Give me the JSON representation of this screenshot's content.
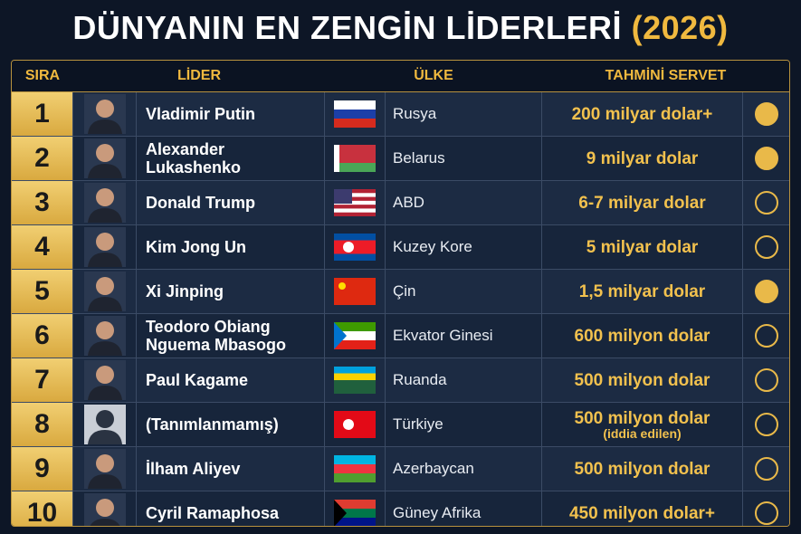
{
  "header": {
    "title": "DÜNYANIN EN ZENGİN LİDERLERİ",
    "year": "(2026)"
  },
  "table": {
    "columns": [
      "SIRA",
      "LİDER",
      "ÜLKE",
      "TAHMİNİ SERVET"
    ],
    "rows": [
      {
        "rank": 1,
        "leader": "Vladimir Putin",
        "country": "Rusya",
        "wealth": "200 milyar dolar+"
      },
      {
        "rank": 2,
        "leader": "Alexander Lukashenko",
        "country": "Belarus",
        "wealth": "9 milyar dolar"
      },
      {
        "rank": 3,
        "leader": "Donald Trump",
        "country": "ABD",
        "wealth": "6-7 milyar dolar"
      },
      {
        "rank": 4,
        "leader": "Kim Jong Un",
        "country": "Kuzey Kore",
        "wealth": "5 milyar dolar"
      },
      {
        "rank": 5,
        "leader": "Xi Jinping",
        "country": "Çin",
        "wealth": "1,5 milyar dolar"
      },
      {
        "rank": 6,
        "leader": "Teodoro Obiang Nguema Mbasogo",
        "country": "Ekvator Ginesi",
        "wealth": "600 milyon dolar"
      },
      {
        "rank": 7,
        "leader": "Paul Kagame",
        "country": "Ruanda",
        "wealth": "500 milyon dolar"
      },
      {
        "rank": 8,
        "leader": "(Tanımlanmamış)",
        "country": "Türkiye",
        "wealth": "500 milyon dolar",
        "note": "(iddia edilen)"
      },
      {
        "rank": 9,
        "leader": "İlham Aliyev",
        "country": "Azerbaycan",
        "wealth": "500 milyon dolar"
      },
      {
        "rank": 10,
        "leader": "Cyril Ramaphosa",
        "country": "Güney Afrika",
        "wealth": "450 milyon dolar+"
      }
    ]
  }
}
